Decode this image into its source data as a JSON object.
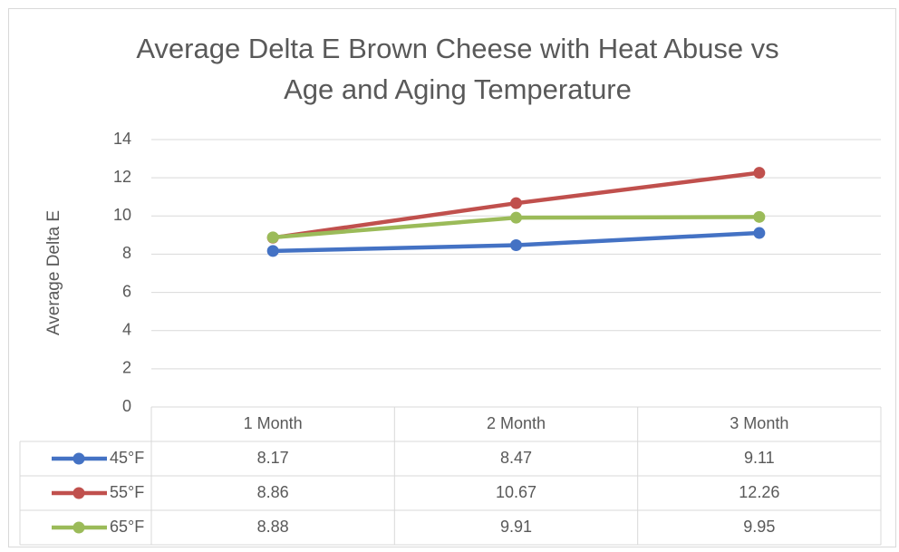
{
  "chart_data": {
    "type": "line",
    "title": [
      "Average Delta E Brown Cheese with Heat Abuse vs",
      "Age and Aging Temperature"
    ],
    "y_label": "Average Delta E",
    "categories": [
      "1 Month",
      "2 Month",
      "3 Month"
    ],
    "series": [
      {
        "name": "45°F",
        "color": "#4472c4",
        "values": [
          8.17,
          8.47,
          9.11
        ]
      },
      {
        "name": "55°F",
        "color": "#c0504d",
        "values": [
          8.86,
          10.67,
          12.26
        ]
      },
      {
        "name": "65°F",
        "color": "#9bbb59",
        "values": [
          8.88,
          9.91,
          9.95
        ]
      }
    ],
    "ylim": [
      0,
      14
    ],
    "yticks": [
      0,
      2,
      4,
      6,
      8,
      10,
      12,
      14
    ],
    "grid": true,
    "data_table": true
  }
}
